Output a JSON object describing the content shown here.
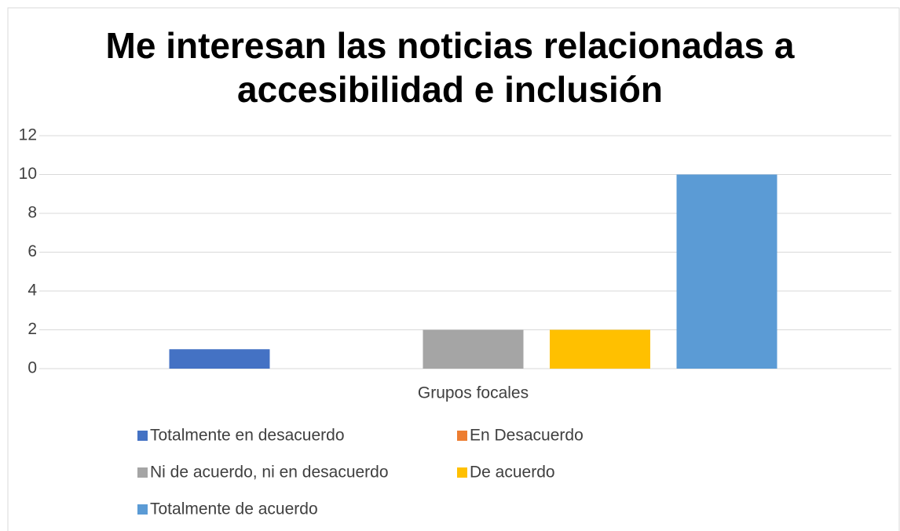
{
  "chart_data": {
    "type": "bar",
    "title": "Me interesan las noticias relacionadas a accesibilidad e inclusión",
    "categories": [
      "Grupos focales"
    ],
    "series": [
      {
        "name": "Totalmente en desacuerdo",
        "color": "#4472c4",
        "values": [
          1
        ]
      },
      {
        "name": "En Desacuerdo",
        "color": "#ed7d31",
        "values": [
          0
        ]
      },
      {
        "name": "Ni de acuerdo, ni en desacuerdo",
        "color": "#a5a5a5",
        "values": [
          2
        ]
      },
      {
        "name": "De acuerdo",
        "color": "#ffc000",
        "values": [
          2
        ]
      },
      {
        "name": "Totalmente de acuerdo",
        "color": "#5b9bd5",
        "values": [
          10
        ]
      }
    ],
    "ylim": [
      0,
      12
    ],
    "yticks": [
      0,
      2,
      4,
      6,
      8,
      10,
      12
    ],
    "grid": true,
    "legend": "bottom"
  }
}
